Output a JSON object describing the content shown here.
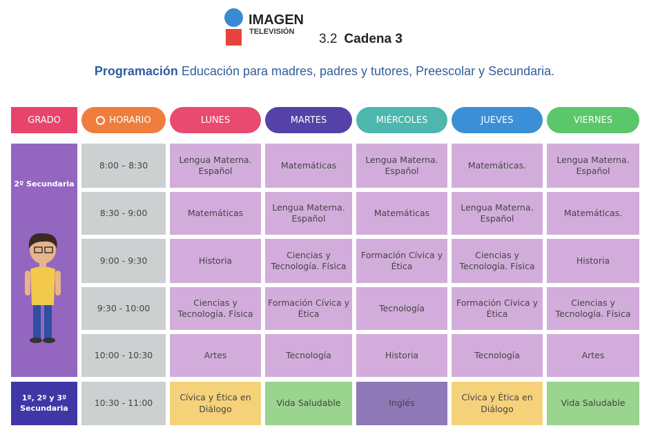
{
  "logo": {
    "brand": "IMAGEN",
    "sub": "TELEVISIÓN",
    "colors": {
      "circle": "#3a8bd1",
      "square": "#e8423f"
    }
  },
  "channel": {
    "number": "3.2",
    "name": "Cadena 3"
  },
  "subtitle": {
    "bold": "Programación",
    "text": "Educación para madres, padres y tutores, Preescolar y Secundaria."
  },
  "headers": [
    {
      "label": "GRADO",
      "color": "#e8436b"
    },
    {
      "label": "HORARIO",
      "color": "#ef7d3b",
      "icon": "clock-icon"
    },
    {
      "label": "LUNES",
      "color": "#e84a70"
    },
    {
      "label": "MARTES",
      "color": "#5542a8"
    },
    {
      "label": "MIÉRCOLES",
      "color": "#4db6ad"
    },
    {
      "label": "JUEVES",
      "color": "#3b8fd6"
    },
    {
      "label": "VIERNES",
      "color": "#5cc66a"
    }
  ],
  "grades": [
    {
      "label": "2º Secundaria",
      "color": "#9366c0"
    },
    {
      "label": "1º, 2º y 3º Secundaria",
      "color": "#4136a6"
    }
  ],
  "rows": [
    {
      "time": "8:00 – 8:30",
      "cells": [
        "Lengua Materna. Español",
        "Matemáticas",
        "Lengua Materna. Español",
        "Matemáticas.",
        "Lengua Materna. Español"
      ]
    },
    {
      "time": "8:30 - 9:00",
      "cells": [
        "Matemáticas",
        "Lengua Materna. Español",
        "Matemáticas",
        "Lengua Materna. Español",
        "Matemáticas."
      ]
    },
    {
      "time": "9:00 - 9:30",
      "cells": [
        "Historia",
        "Ciencias y Tecnología. Física",
        "Formación Cívica y Ética",
        "Ciencias y Tecnología. Física",
        "Historia"
      ]
    },
    {
      "time": "9:30 - 10:00",
      "cells": [
        "Ciencias y Tecnología. Física",
        "Formación Cívica y Ética",
        "Tecnología",
        "Formación Cívica y Ética",
        "Ciencias y Tecnología. Física"
      ]
    },
    {
      "time": "10:00 - 10:30",
      "cells": [
        "Artes",
        "Tecnología",
        "Historia",
        "Tecnología",
        "Artes"
      ]
    },
    {
      "time": "10:30 - 11:00",
      "cells": [
        "Cívica y Ética en Diálogo",
        "Vida Saludable",
        "Inglés",
        "Cívica y Ética en Diálogo",
        "Vida Saludable"
      ],
      "colors": [
        "#f5d27a",
        "#9ad48e",
        "#8e78b5",
        "#f5d27a",
        "#9ad48e"
      ]
    }
  ],
  "colors": {
    "cell": "#d2addb",
    "time": "#ccd0d1"
  }
}
